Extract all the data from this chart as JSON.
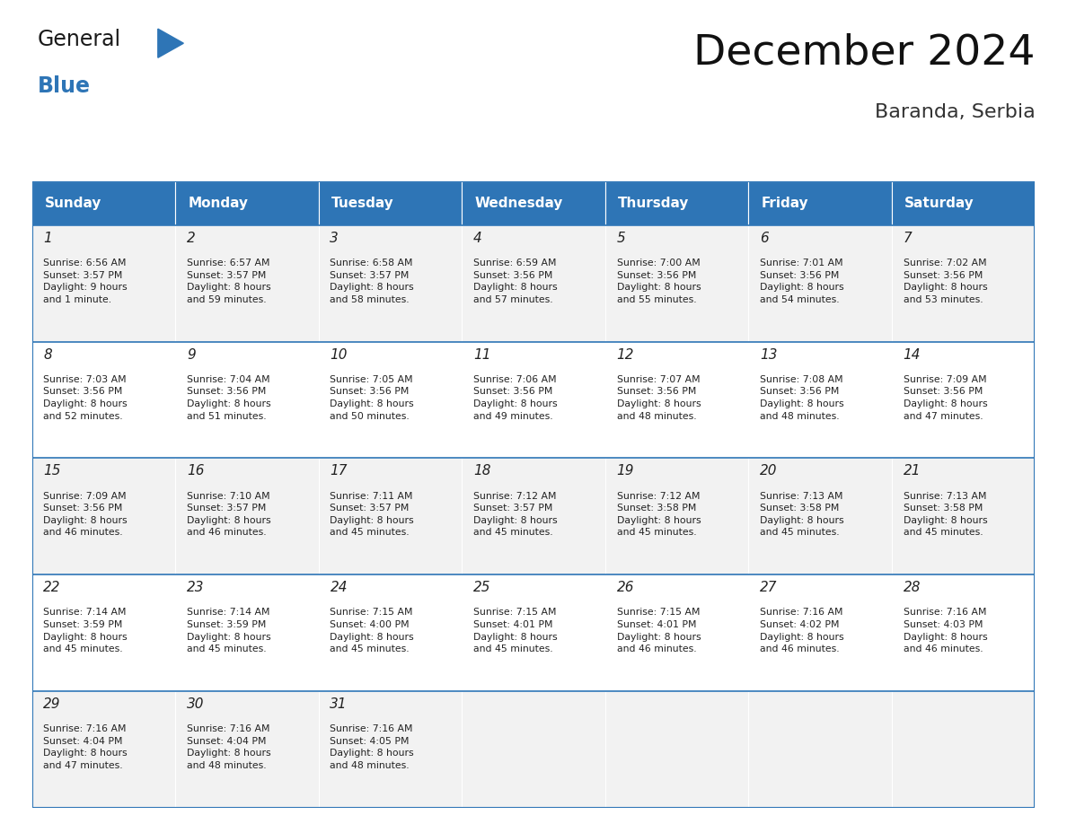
{
  "title": "December 2024",
  "subtitle": "Baranda, Serbia",
  "header_color": "#2E75B6",
  "header_text_color": "#FFFFFF",
  "day_names": [
    "Sunday",
    "Monday",
    "Tuesday",
    "Wednesday",
    "Thursday",
    "Friday",
    "Saturday"
  ],
  "row_bg_colors": [
    "#F2F2F2",
    "#FFFFFF"
  ],
  "cell_border_color": "#2E75B6",
  "text_color": "#222222",
  "days": [
    {
      "day": 1,
      "col": 0,
      "row": 0,
      "sunrise": "6:56 AM",
      "sunset": "3:57 PM",
      "daylight": "9 hours\nand 1 minute."
    },
    {
      "day": 2,
      "col": 1,
      "row": 0,
      "sunrise": "6:57 AM",
      "sunset": "3:57 PM",
      "daylight": "8 hours\nand 59 minutes."
    },
    {
      "day": 3,
      "col": 2,
      "row": 0,
      "sunrise": "6:58 AM",
      "sunset": "3:57 PM",
      "daylight": "8 hours\nand 58 minutes."
    },
    {
      "day": 4,
      "col": 3,
      "row": 0,
      "sunrise": "6:59 AM",
      "sunset": "3:56 PM",
      "daylight": "8 hours\nand 57 minutes."
    },
    {
      "day": 5,
      "col": 4,
      "row": 0,
      "sunrise": "7:00 AM",
      "sunset": "3:56 PM",
      "daylight": "8 hours\nand 55 minutes."
    },
    {
      "day": 6,
      "col": 5,
      "row": 0,
      "sunrise": "7:01 AM",
      "sunset": "3:56 PM",
      "daylight": "8 hours\nand 54 minutes."
    },
    {
      "day": 7,
      "col": 6,
      "row": 0,
      "sunrise": "7:02 AM",
      "sunset": "3:56 PM",
      "daylight": "8 hours\nand 53 minutes."
    },
    {
      "day": 8,
      "col": 0,
      "row": 1,
      "sunrise": "7:03 AM",
      "sunset": "3:56 PM",
      "daylight": "8 hours\nand 52 minutes."
    },
    {
      "day": 9,
      "col": 1,
      "row": 1,
      "sunrise": "7:04 AM",
      "sunset": "3:56 PM",
      "daylight": "8 hours\nand 51 minutes."
    },
    {
      "day": 10,
      "col": 2,
      "row": 1,
      "sunrise": "7:05 AM",
      "sunset": "3:56 PM",
      "daylight": "8 hours\nand 50 minutes."
    },
    {
      "day": 11,
      "col": 3,
      "row": 1,
      "sunrise": "7:06 AM",
      "sunset": "3:56 PM",
      "daylight": "8 hours\nand 49 minutes."
    },
    {
      "day": 12,
      "col": 4,
      "row": 1,
      "sunrise": "7:07 AM",
      "sunset": "3:56 PM",
      "daylight": "8 hours\nand 48 minutes."
    },
    {
      "day": 13,
      "col": 5,
      "row": 1,
      "sunrise": "7:08 AM",
      "sunset": "3:56 PM",
      "daylight": "8 hours\nand 48 minutes."
    },
    {
      "day": 14,
      "col": 6,
      "row": 1,
      "sunrise": "7:09 AM",
      "sunset": "3:56 PM",
      "daylight": "8 hours\nand 47 minutes."
    },
    {
      "day": 15,
      "col": 0,
      "row": 2,
      "sunrise": "7:09 AM",
      "sunset": "3:56 PM",
      "daylight": "8 hours\nand 46 minutes."
    },
    {
      "day": 16,
      "col": 1,
      "row": 2,
      "sunrise": "7:10 AM",
      "sunset": "3:57 PM",
      "daylight": "8 hours\nand 46 minutes."
    },
    {
      "day": 17,
      "col": 2,
      "row": 2,
      "sunrise": "7:11 AM",
      "sunset": "3:57 PM",
      "daylight": "8 hours\nand 45 minutes."
    },
    {
      "day": 18,
      "col": 3,
      "row": 2,
      "sunrise": "7:12 AM",
      "sunset": "3:57 PM",
      "daylight": "8 hours\nand 45 minutes."
    },
    {
      "day": 19,
      "col": 4,
      "row": 2,
      "sunrise": "7:12 AM",
      "sunset": "3:58 PM",
      "daylight": "8 hours\nand 45 minutes."
    },
    {
      "day": 20,
      "col": 5,
      "row": 2,
      "sunrise": "7:13 AM",
      "sunset": "3:58 PM",
      "daylight": "8 hours\nand 45 minutes."
    },
    {
      "day": 21,
      "col": 6,
      "row": 2,
      "sunrise": "7:13 AM",
      "sunset": "3:58 PM",
      "daylight": "8 hours\nand 45 minutes."
    },
    {
      "day": 22,
      "col": 0,
      "row": 3,
      "sunrise": "7:14 AM",
      "sunset": "3:59 PM",
      "daylight": "8 hours\nand 45 minutes."
    },
    {
      "day": 23,
      "col": 1,
      "row": 3,
      "sunrise": "7:14 AM",
      "sunset": "3:59 PM",
      "daylight": "8 hours\nand 45 minutes."
    },
    {
      "day": 24,
      "col": 2,
      "row": 3,
      "sunrise": "7:15 AM",
      "sunset": "4:00 PM",
      "daylight": "8 hours\nand 45 minutes."
    },
    {
      "day": 25,
      "col": 3,
      "row": 3,
      "sunrise": "7:15 AM",
      "sunset": "4:01 PM",
      "daylight": "8 hours\nand 45 minutes."
    },
    {
      "day": 26,
      "col": 4,
      "row": 3,
      "sunrise": "7:15 AM",
      "sunset": "4:01 PM",
      "daylight": "8 hours\nand 46 minutes."
    },
    {
      "day": 27,
      "col": 5,
      "row": 3,
      "sunrise": "7:16 AM",
      "sunset": "4:02 PM",
      "daylight": "8 hours\nand 46 minutes."
    },
    {
      "day": 28,
      "col": 6,
      "row": 3,
      "sunrise": "7:16 AM",
      "sunset": "4:03 PM",
      "daylight": "8 hours\nand 46 minutes."
    },
    {
      "day": 29,
      "col": 0,
      "row": 4,
      "sunrise": "7:16 AM",
      "sunset": "4:04 PM",
      "daylight": "8 hours\nand 47 minutes."
    },
    {
      "day": 30,
      "col": 1,
      "row": 4,
      "sunrise": "7:16 AM",
      "sunset": "4:04 PM",
      "daylight": "8 hours\nand 48 minutes."
    },
    {
      "day": 31,
      "col": 2,
      "row": 4,
      "sunrise": "7:16 AM",
      "sunset": "4:05 PM",
      "daylight": "8 hours\nand 48 minutes."
    }
  ],
  "num_rows": 5,
  "num_cols": 7,
  "logo_general_color": "#1A1A1A",
  "logo_blue_color": "#2E75B6",
  "figsize": [
    11.88,
    9.18
  ],
  "dpi": 100
}
